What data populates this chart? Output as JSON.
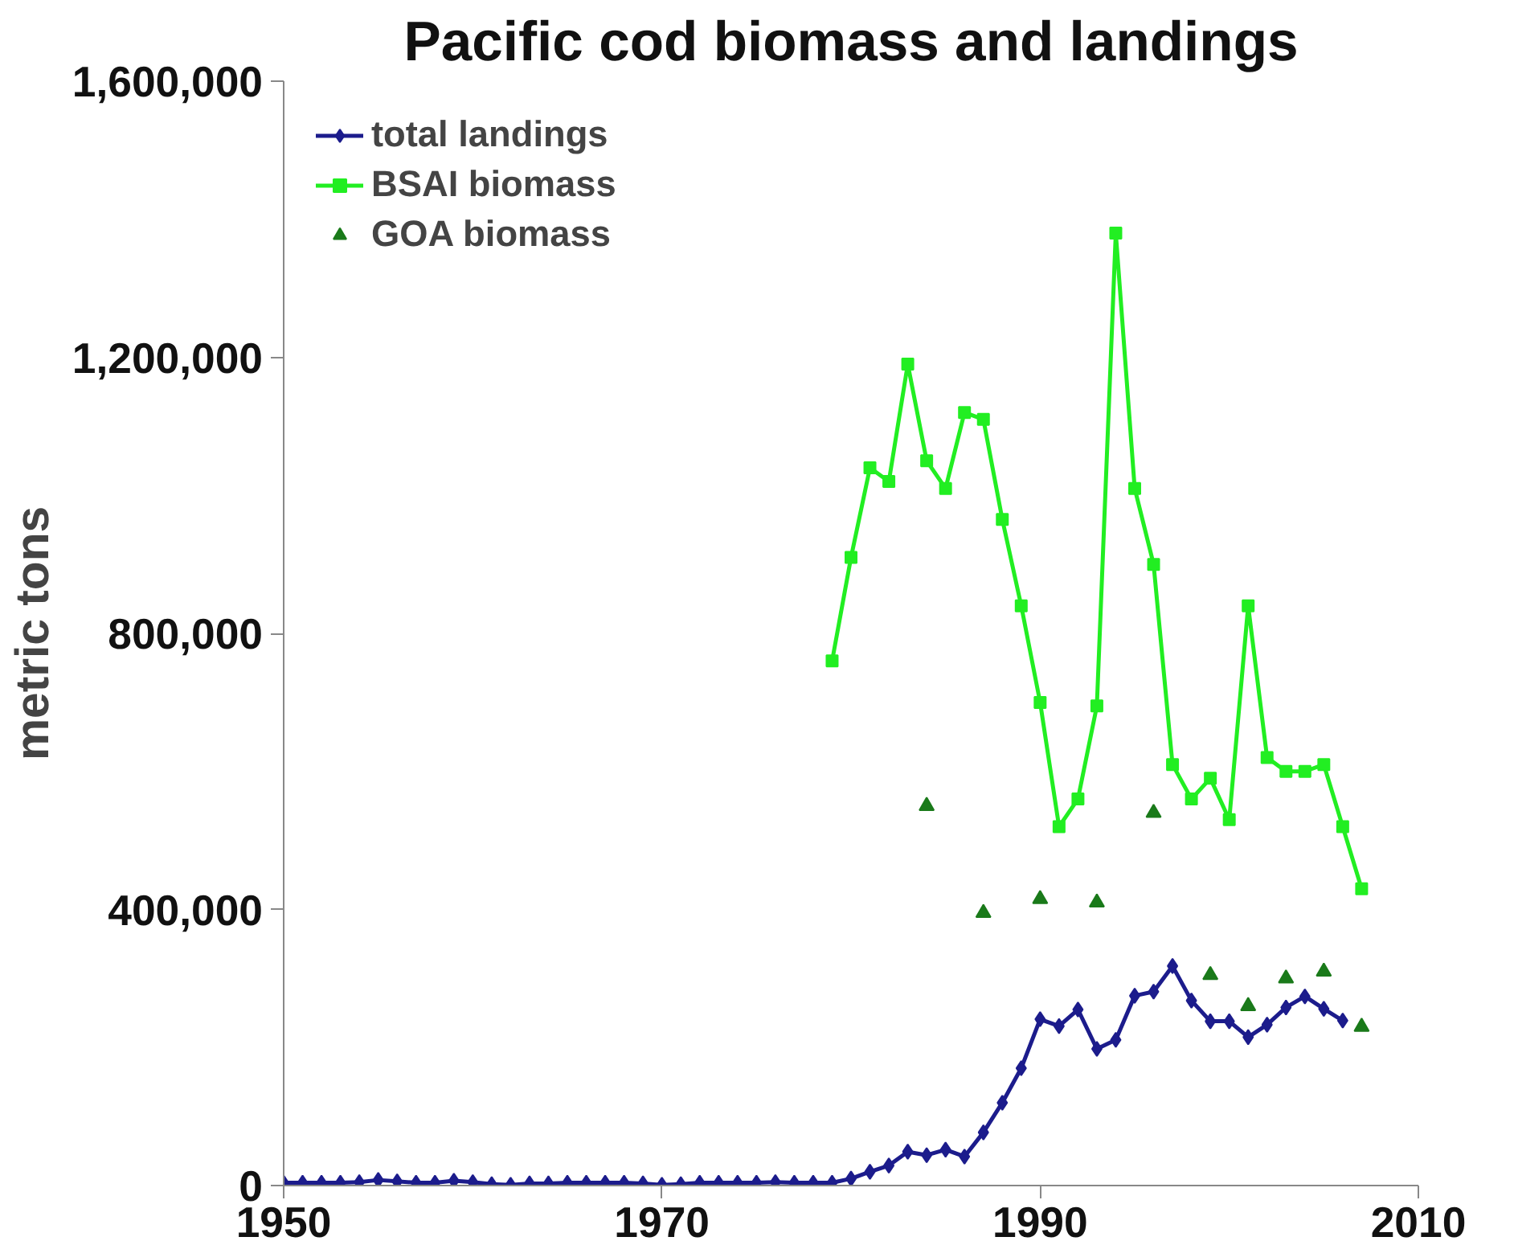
{
  "chart_data": {
    "type": "line",
    "title": "Pacific cod biomass and landings",
    "ylabel": "metric tons",
    "xlim": [
      1950,
      2010
    ],
    "xticks": [
      1950,
      1970,
      1990,
      2010
    ],
    "ylim": [
      0,
      1600000
    ],
    "yticks": [
      {
        "value": 0,
        "label": "0"
      },
      {
        "value": 400000,
        "label": "400,000"
      },
      {
        "value": 800000,
        "label": "800,000"
      },
      {
        "value": 1200000,
        "label": "1,200,000"
      },
      {
        "value": 1600000,
        "label": "1,600,000"
      }
    ],
    "grid": false,
    "legend": "top left",
    "series": [
      {
        "name": "total landings",
        "marker": "diamond",
        "color": "#1c1c8c",
        "x": [
          1950,
          1951,
          1952,
          1953,
          1954,
          1955,
          1956,
          1957,
          1958,
          1959,
          1960,
          1961,
          1962,
          1963,
          1964,
          1965,
          1966,
          1967,
          1968,
          1969,
          1970,
          1971,
          1972,
          1973,
          1974,
          1975,
          1976,
          1977,
          1978,
          1979,
          1980,
          1981,
          1982,
          1983,
          1984,
          1985,
          1986,
          1987,
          1988,
          1989,
          1990,
          1991,
          1992,
          1993,
          1994,
          1995,
          1996,
          1997,
          1998,
          1999,
          2000,
          2001,
          2002,
          2003,
          2004,
          2005,
          2006
        ],
        "values": [
          4000,
          4000,
          4000,
          4000,
          5000,
          8000,
          6000,
          4000,
          4000,
          7000,
          5000,
          2000,
          1000,
          3000,
          3000,
          4000,
          4000,
          4000,
          4000,
          3000,
          1000,
          2000,
          4000,
          4000,
          4000,
          4000,
          5000,
          4000,
          4000,
          4000,
          10000,
          20000,
          29000,
          49000,
          44000,
          52000,
          42000,
          77000,
          120000,
          170000,
          241000,
          231000,
          255000,
          198000,
          211000,
          275000,
          281000,
          318000,
          268000,
          238000,
          238000,
          215000,
          233000,
          258000,
          274000,
          256000,
          239000
        ]
      },
      {
        "name": "BSAI biomass",
        "marker": "square",
        "color": "#22ee22",
        "x": [
          1979,
          1980,
          1981,
          1982,
          1983,
          1984,
          1985,
          1986,
          1987,
          1988,
          1989,
          1990,
          1991,
          1992,
          1993,
          1994,
          1995,
          1996,
          1997,
          1998,
          1999,
          2000,
          2001,
          2002,
          2003,
          2004,
          2005,
          2006,
          2007
        ],
        "values": [
          760000,
          910000,
          1040000,
          1020000,
          1190000,
          1050000,
          1010000,
          1120000,
          1110000,
          965000,
          840000,
          700000,
          520000,
          560000,
          695000,
          1380000,
          1010000,
          900000,
          610000,
          560000,
          590000,
          530000,
          840000,
          620000,
          600000,
          600000,
          610000,
          520000,
          430000
        ]
      },
      {
        "name": "GOA biomass",
        "type": "scatter",
        "marker": "triangle",
        "color": "#1a7a1a",
        "x": [
          1984,
          1987,
          1990,
          1993,
          1996,
          1999,
          2001,
          2003,
          2005,
          2007
        ],
        "values": [
          550000,
          395000,
          415000,
          410000,
          540000,
          305000,
          260000,
          300000,
          310000,
          230000
        ]
      }
    ]
  }
}
